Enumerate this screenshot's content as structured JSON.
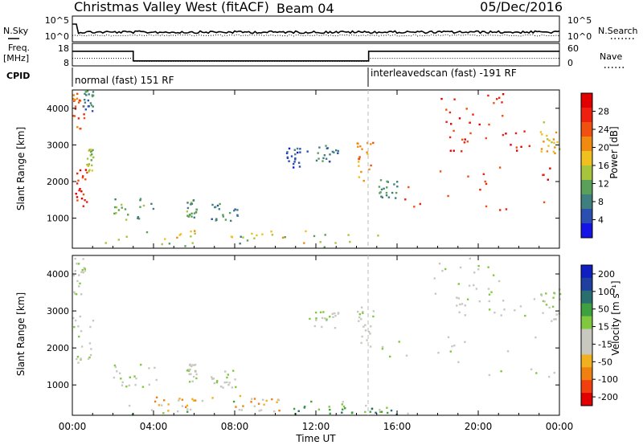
{
  "header": {
    "title": "Christmas Valley West (fitACF)",
    "beam": "Beam 04",
    "date": "05/Dec/2016"
  },
  "noise_panel": {
    "left_label": "N.Sky",
    "right_label": "N.Search",
    "left_ticks": [
      "10^5",
      "10^0"
    ],
    "right_ticks": [
      "10^5",
      "10^0"
    ]
  },
  "freq_panel": {
    "left_label_1": "Freq.",
    "left_label_2": "[MHz]",
    "right_label": "Nave",
    "left_ticks": [
      "18",
      "8"
    ],
    "right_ticks": [
      "60",
      "0"
    ],
    "freq_steps": [
      {
        "t0": 0.0,
        "t1": 3.0,
        "mhz": 14.5
      },
      {
        "t0": 3.0,
        "t1": 14.6,
        "mhz": 10.2
      },
      {
        "t0": 14.6,
        "t1": 24.0,
        "mhz": 14.5
      }
    ],
    "nave_steps": [
      {
        "t0": 0.0,
        "t1": 3.0,
        "nave": 20
      },
      {
        "t0": 3.0,
        "t1": 14.6,
        "nave": 12
      },
      {
        "t0": 14.6,
        "t1": 24.0,
        "nave": 20
      }
    ]
  },
  "cpid": {
    "label": "CPID",
    "segments": [
      {
        "t0": 0.0,
        "t1": 14.6,
        "text": "normal (fast) 151 RF"
      },
      {
        "t0": 14.6,
        "t1": 24.0,
        "text": "interleavedscan (fast) -191 RF"
      }
    ]
  },
  "colors": {
    "power_scale": [
      "#1414e6",
      "#2a4fb0",
      "#3f7f7f",
      "#5aa05a",
      "#a8c43c",
      "#f0c020",
      "#f08a10",
      "#f05010",
      "#ee2010",
      "#e00000"
    ],
    "velocity_scale": [
      "#e00000",
      "#f04010",
      "#f08010",
      "#f0b020",
      "#c8c8c0",
      "#c8c8c0",
      "#80c840",
      "#3fa040",
      "#2a6f6f",
      "#2040a0",
      "#1020c0"
    ]
  },
  "chart_data": [
    {
      "type": "heatmap",
      "name": "power",
      "ylabel": "Slant Range [km]",
      "colorbar_label": "Power [dB]",
      "colorbar_ticks": [
        "28",
        "24",
        "20",
        "16",
        "12",
        "8",
        "4"
      ],
      "colorbar_range": [
        0,
        32
      ],
      "ylim": [
        180,
        4500
      ],
      "yticks": [
        "4000",
        "3000",
        "2000",
        "1000"
      ],
      "xlim": [
        0,
        24
      ],
      "regions": [
        {
          "t0": 0.0,
          "t1": 0.6,
          "r0": 3400,
          "r1": 4400,
          "level": 7
        },
        {
          "t0": 0.0,
          "t1": 0.7,
          "r0": 1300,
          "r1": 2300,
          "level": 8
        },
        {
          "t0": 0.6,
          "t1": 1.0,
          "r0": 2200,
          "r1": 2900,
          "level": 4
        },
        {
          "t0": 0.5,
          "t1": 1.0,
          "r0": 3900,
          "r1": 4500,
          "level": 2
        },
        {
          "t0": 2.0,
          "t1": 4.2,
          "r0": 900,
          "r1": 1550,
          "level": 3
        },
        {
          "t0": 5.6,
          "t1": 6.1,
          "r0": 1000,
          "r1": 1550,
          "level": 3
        },
        {
          "t0": 6.8,
          "t1": 8.2,
          "r0": 900,
          "r1": 1400,
          "level": 2
        },
        {
          "t0": 10.5,
          "t1": 11.2,
          "r0": 2300,
          "r1": 2900,
          "level": 1
        },
        {
          "t0": 11.5,
          "t1": 13.2,
          "r0": 2500,
          "r1": 3000,
          "level": 2
        },
        {
          "t0": 14.0,
          "t1": 14.8,
          "r0": 2000,
          "r1": 3100,
          "level": 6
        },
        {
          "t0": 15.0,
          "t1": 16.0,
          "r0": 1500,
          "r1": 2100,
          "level": 2
        },
        {
          "t0": 16.3,
          "t1": 23.8,
          "r0": 1200,
          "r1": 2400,
          "level": 8
        },
        {
          "t0": 18.5,
          "t1": 22.8,
          "r0": 2800,
          "r1": 3400,
          "level": 8
        },
        {
          "t0": 18.0,
          "t1": 21.2,
          "r0": 3400,
          "r1": 4400,
          "level": 8
        },
        {
          "t0": 23.0,
          "t1": 24.0,
          "r0": 2700,
          "r1": 3600,
          "level": 5
        },
        {
          "t0": 0.5,
          "t1": 16.5,
          "r0": 180,
          "r1": 600,
          "level": 3
        },
        {
          "t0": 3.0,
          "t1": 11.5,
          "r0": 300,
          "r1": 700,
          "level": 5
        }
      ]
    },
    {
      "type": "heatmap",
      "name": "velocity",
      "ylabel": "Slant Range [km]",
      "xlabel": "Time UT",
      "colorbar_label": "Velocity [m s⁻¹]",
      "colorbar_ticks": [
        "200",
        "100",
        "50",
        "15",
        "-15",
        "-50",
        "-100",
        "-200"
      ],
      "colorbar_range": [
        -250,
        250
      ],
      "ylim": [
        180,
        4500
      ],
      "yticks": [
        "4000",
        "3000",
        "2000",
        "1000"
      ],
      "xlim": [
        0,
        24
      ],
      "xticks": [
        "00:00",
        "04:00",
        "08:00",
        "12:00",
        "16:00",
        "20:00",
        "00:00"
      ],
      "regions": [
        {
          "t0": 0.0,
          "t1": 1.0,
          "r0": 1500,
          "r1": 2900,
          "level": 5
        },
        {
          "t0": 0.0,
          "t1": 0.6,
          "r0": 3300,
          "r1": 4400,
          "level": 5
        },
        {
          "t0": 2.0,
          "t1": 4.2,
          "r0": 900,
          "r1": 1550,
          "level": 5
        },
        {
          "t0": 5.6,
          "t1": 6.1,
          "r0": 1000,
          "r1": 1550,
          "level": 5
        },
        {
          "t0": 6.8,
          "t1": 8.2,
          "r0": 900,
          "r1": 1400,
          "level": 5
        },
        {
          "t0": 11.5,
          "t1": 13.2,
          "r0": 2500,
          "r1": 3000,
          "level": 5
        },
        {
          "t0": 14.0,
          "t1": 14.8,
          "r0": 2000,
          "r1": 3100,
          "level": 5
        },
        {
          "t0": 15.0,
          "t1": 23.8,
          "r0": 1200,
          "r1": 2400,
          "level": 5
        },
        {
          "t0": 18.5,
          "t1": 22.8,
          "r0": 2800,
          "r1": 3400,
          "level": 5
        },
        {
          "t0": 17.8,
          "t1": 21.2,
          "r0": 3400,
          "r1": 4400,
          "level": 5
        },
        {
          "t0": 23.0,
          "t1": 24.0,
          "r0": 2700,
          "r1": 3700,
          "level": 5
        },
        {
          "t0": 0.5,
          "t1": 16.5,
          "r0": 180,
          "r1": 550,
          "level": 6
        },
        {
          "t0": 4.0,
          "t1": 7.0,
          "r0": 250,
          "r1": 650,
          "level": 3
        },
        {
          "t0": 8.0,
          "t1": 10.2,
          "r0": 250,
          "r1": 700,
          "level": 3
        },
        {
          "t0": 10.5,
          "t1": 16.0,
          "r0": 180,
          "r1": 400,
          "level": 7
        }
      ]
    }
  ]
}
